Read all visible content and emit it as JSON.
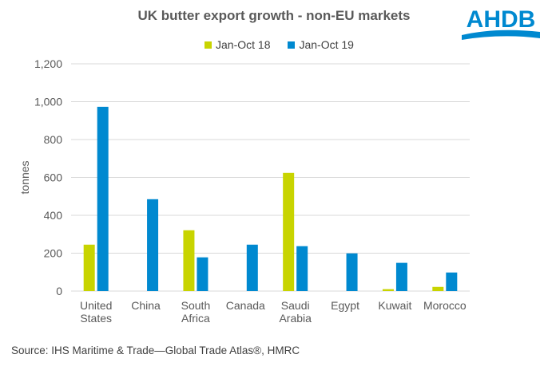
{
  "logo_text": "AHDB",
  "source": "Source: IHS Maritime & Trade—Global Trade Atlas®, HMRC",
  "chart_data": {
    "type": "bar",
    "title": "UK butter export growth - non-EU markets",
    "xlabel": "",
    "ylabel": "tonnes",
    "ylim": [
      0,
      1200
    ],
    "yticks": [
      0,
      200,
      400,
      600,
      800,
      1000,
      1200
    ],
    "ytick_labels": [
      "0",
      "200",
      "400",
      "600",
      "800",
      "1,000",
      "1,200"
    ],
    "grid": true,
    "legend_position": "top",
    "categories": [
      [
        "United",
        "States"
      ],
      [
        "China"
      ],
      [
        "South",
        "Africa"
      ],
      [
        "Canada"
      ],
      [
        "Saudi",
        "Arabia"
      ],
      [
        "Egypt"
      ],
      [
        "Kuwait"
      ],
      [
        "Morocco"
      ]
    ],
    "series": [
      {
        "name": "Jan-Oct 18",
        "color": "#c8d400",
        "values": [
          245,
          0,
          321,
          0,
          624,
          0,
          10,
          22
        ]
      },
      {
        "name": "Jan-Oct 19",
        "color": "#0089d0",
        "values": [
          973,
          485,
          178,
          245,
          237,
          199,
          149,
          98
        ]
      }
    ]
  }
}
